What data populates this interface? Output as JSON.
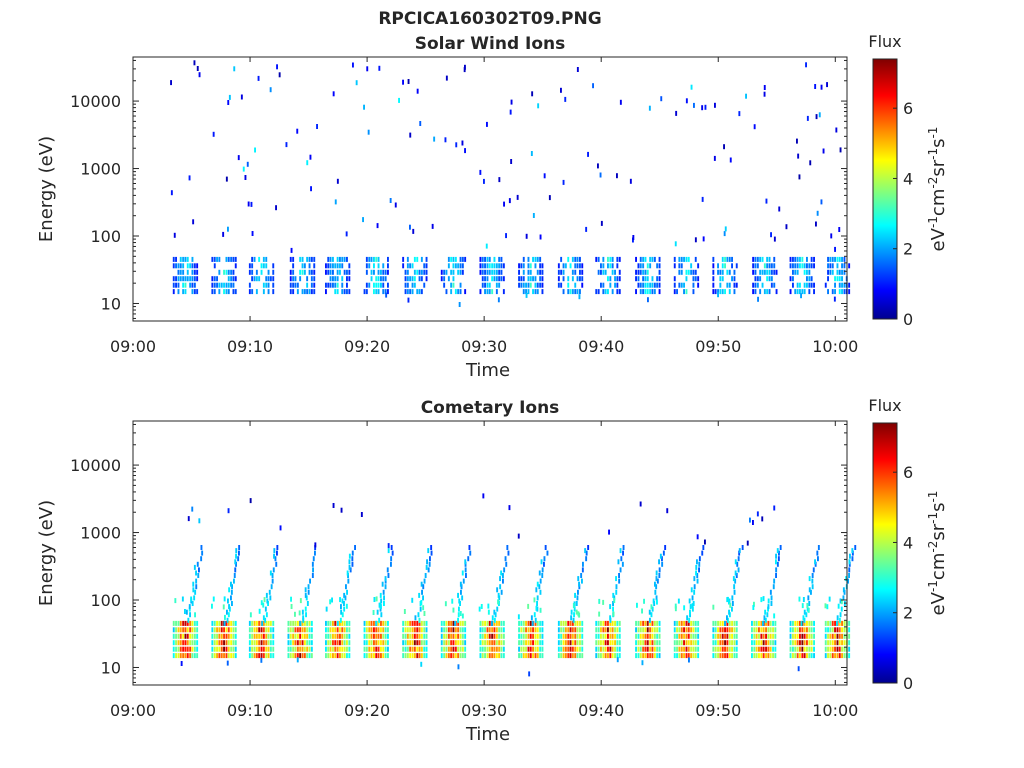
{
  "figure": {
    "main_title": "RPCICA160302T09.PNG"
  },
  "chart_data": [
    {
      "type": "heatmap",
      "title": "Solar Wind Ions",
      "xlabel": "Time",
      "ylabel": "Energy (eV)",
      "x_ticks": [
        "09:00",
        "09:10",
        "09:20",
        "09:30",
        "09:40",
        "09:50",
        "10:00"
      ],
      "x_range_minutes": [
        0,
        61
      ],
      "y_scale": "log",
      "y_ticks": [
        "10",
        "100",
        "1000",
        "10000"
      ],
      "y_range": [
        5.5,
        45000
      ],
      "colorbar": {
        "title": "Flux",
        "label": "eV-1cm-2sr-1s-1",
        "ticks": [
          "0",
          "2",
          "4",
          "6"
        ],
        "range": [
          0,
          7.4
        ],
        "colormap": "jet"
      },
      "sweep_start_minutes": [
        3.8,
        7.1,
        10.3,
        13.8,
        16.8,
        20.1,
        23.4,
        26.7,
        30.0,
        33.3,
        36.7,
        39.9,
        43.3,
        46.6,
        49.9,
        53.3,
        56.5,
        59.5
      ],
      "band_energy_ev": [
        15,
        45
      ],
      "band_peak_flux": 2.8,
      "sparse_point_count": 150,
      "sparse_energy_range_ev": [
        60,
        40000
      ]
    },
    {
      "type": "heatmap",
      "title": "Cometary Ions",
      "xlabel": "Time",
      "ylabel": "Energy (eV)",
      "x_ticks": [
        "09:00",
        "09:10",
        "09:20",
        "09:30",
        "09:40",
        "09:50",
        "10:00"
      ],
      "x_range_minutes": [
        0,
        61
      ],
      "y_scale": "log",
      "y_ticks": [
        "10",
        "100",
        "1000",
        "10000"
      ],
      "y_range": [
        5.5,
        45000
      ],
      "colorbar": {
        "title": "Flux",
        "label": "eV-1cm-2sr-1s-1",
        "ticks": [
          "0",
          "2",
          "4",
          "6"
        ],
        "range": [
          0,
          7.4
        ],
        "colormap": "jet"
      },
      "sweep_start_minutes": [
        3.8,
        7.1,
        10.3,
        13.6,
        16.8,
        20.1,
        23.4,
        26.7,
        30.0,
        33.3,
        36.7,
        39.9,
        43.3,
        46.6,
        49.9,
        53.2,
        56.5,
        59.5
      ],
      "band_energy_ev": [
        15,
        45
      ],
      "band_peak_flux": 6.8,
      "tail_max_energy_ev": 600,
      "sparse_point_count": 25,
      "sparse_energy_range_ev": [
        600,
        4000
      ]
    }
  ]
}
